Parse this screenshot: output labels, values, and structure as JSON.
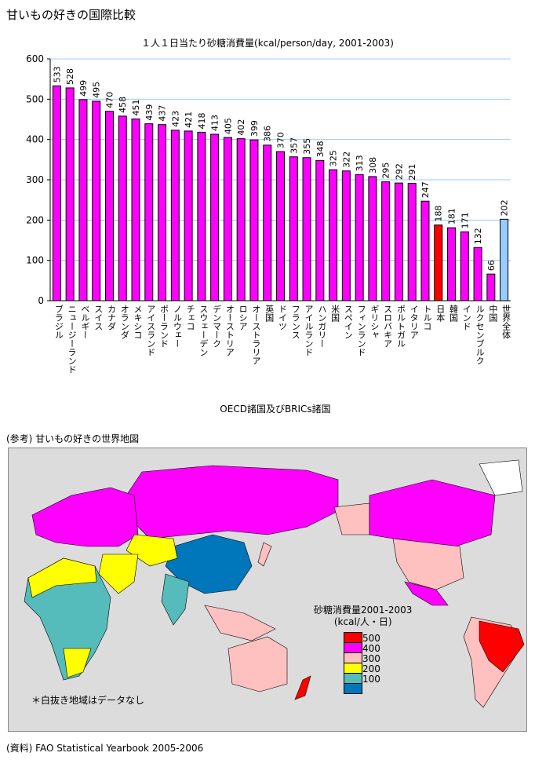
{
  "title": "甘いもの好きの国際比較",
  "chart_data": {
    "type": "bar",
    "title": "１人１日当たり砂糖消費量(kcal/person/day, 2001-2003)",
    "xlabel": "OECD諸国及びBRICs諸国",
    "ylabel": "",
    "ylim": [
      0,
      600
    ],
    "yticks": [
      0,
      100,
      200,
      300,
      400,
      500,
      600
    ],
    "grid": true,
    "categories": [
      "ブラジル",
      "ニュージーランド",
      "ベルギー",
      "スイス",
      "カナダ",
      "オランダ",
      "メキシコ",
      "アイスランド",
      "ポーランド",
      "ノルウェー",
      "チェコ",
      "スウェーデン",
      "デンマーク",
      "オーストリア",
      "ロシア",
      "オーストラリア",
      "英国",
      "ドイツ",
      "フランス",
      "アイルランド",
      "ハンガリー",
      "米国",
      "スペイン",
      "フィンランド",
      "ギリシャ",
      "スロバキア",
      "ポルトガル",
      "イタリア",
      "トルコ",
      "日本",
      "韓国",
      "インド",
      "ルクセンブルク",
      "中国",
      "世界全体"
    ],
    "values": [
      533,
      528,
      499,
      495,
      470,
      458,
      451,
      439,
      437,
      423,
      421,
      418,
      413,
      405,
      402,
      399,
      386,
      370,
      357,
      355,
      348,
      325,
      322,
      313,
      308,
      295,
      292,
      291,
      247,
      188,
      181,
      171,
      132,
      66,
      202
    ],
    "highlight": {
      "日本": "#ff0000",
      "世界全体": "#99ccff"
    },
    "bar_color": "#ff00ff",
    "grid_color": "#99ccff"
  },
  "map": {
    "caption": "(参考) 甘いもの好きの世界地図",
    "legend_title": "砂糖消費量2001-2003",
    "legend_unit": "(kcal/人・日)",
    "legend": [
      {
        "label": "500",
        "color": "#ff0000"
      },
      {
        "label": "400",
        "color": "#ff00ff"
      },
      {
        "label": "300",
        "color": "#ffc0c0"
      },
      {
        "label": "200",
        "color": "#ffff00"
      },
      {
        "label": "100",
        "color": "#55bbbb"
      },
      {
        "label": "",
        "color": "#0077bb"
      }
    ],
    "note": "＊白抜き地域はデータなし"
  },
  "source": "(資料) FAO Statistical Yearbook  2005-2006"
}
